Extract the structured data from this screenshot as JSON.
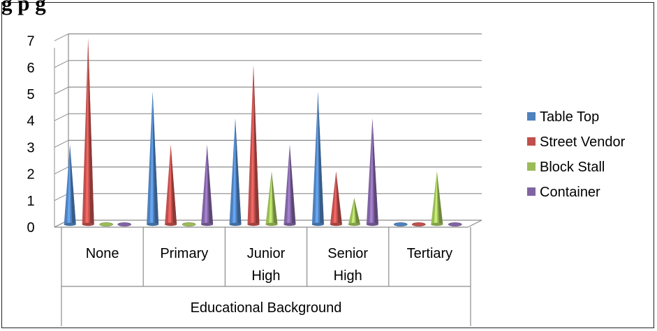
{
  "chart_data": {
    "type": "bar",
    "subtype": "3d-cone",
    "title": "g                                               p                                                             g",
    "categories": [
      "None",
      "Primary",
      "Junior High",
      "Senior High",
      "Tertiary"
    ],
    "category_lines": [
      [
        "None"
      ],
      [
        "Primary"
      ],
      [
        "Junior",
        "High"
      ],
      [
        "Senior",
        "High"
      ],
      [
        "Tertiary"
      ]
    ],
    "xlabel": "Educational Background",
    "ylabel": "",
    "ylim": [
      0,
      7
    ],
    "yticks": [
      "0",
      "1",
      "2",
      "3",
      "4",
      "5",
      "6",
      "7"
    ],
    "grid": true,
    "legend_position": "right",
    "series": [
      {
        "name": "Table Top",
        "color": "#4f81bd",
        "values": [
          3,
          5,
          4,
          5,
          0
        ]
      },
      {
        "name": "Street Vendor",
        "color": "#c0504d",
        "values": [
          7,
          3,
          6,
          2,
          0
        ]
      },
      {
        "name": "Block Stall",
        "color": "#9bbb59",
        "values": [
          0,
          0,
          2,
          1,
          2
        ]
      },
      {
        "name": "Container",
        "color": "#8064a2",
        "values": [
          0,
          3,
          3,
          4,
          0
        ]
      }
    ]
  }
}
